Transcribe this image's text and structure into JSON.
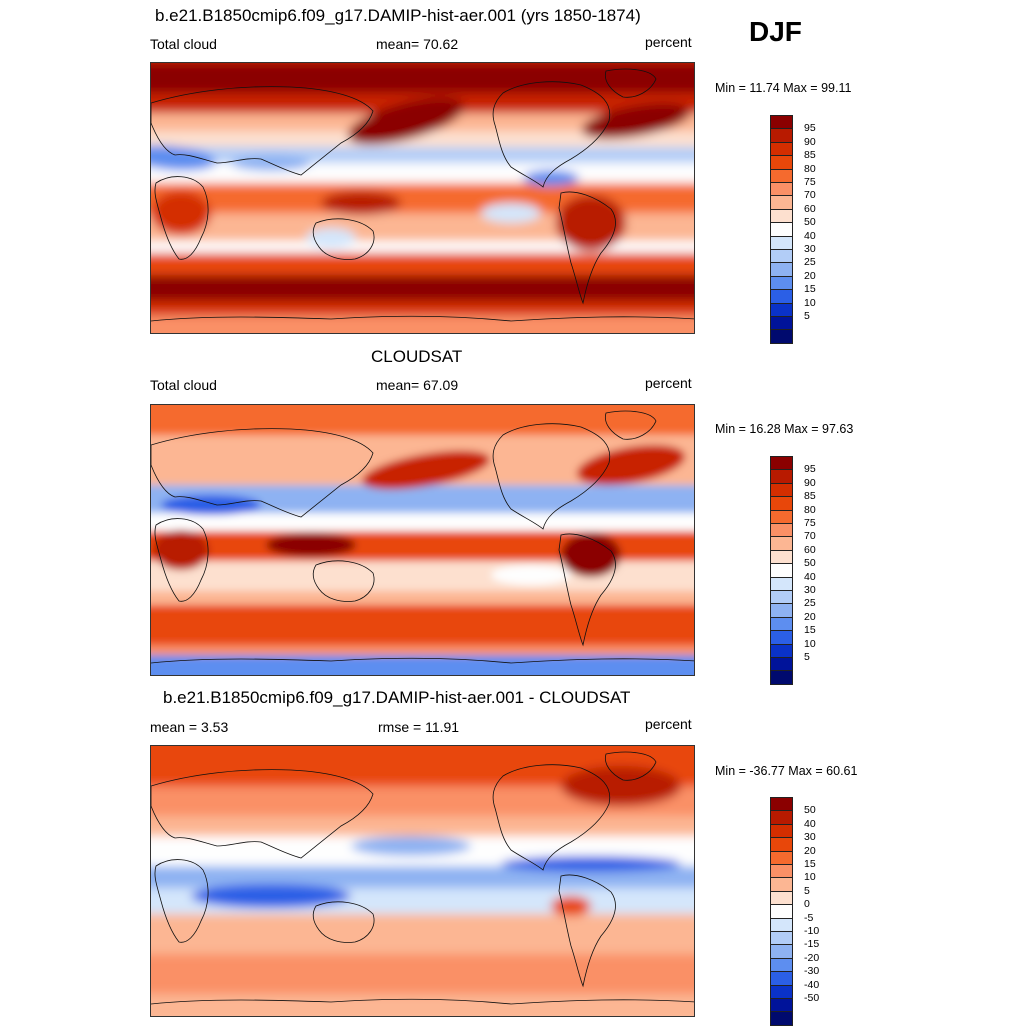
{
  "season": "DJF",
  "units_label": "percent",
  "panels": [
    {
      "title": "b.e21.B1850cmip6.f09_g17.DAMIP-hist-aer.001 (yrs 1850-1874)",
      "left_label": "Total cloud",
      "center_label": "mean=  70.62",
      "right_label": "percent",
      "minmax": "Min =  11.74 Max =  99.11",
      "colorbar": {
        "levels": [
          "95",
          "90",
          "85",
          "80",
          "75",
          "70",
          "60",
          "50",
          "40",
          "30",
          "25",
          "20",
          "15",
          "10",
          "5"
        ],
        "colors": [
          "#8b0000",
          "#b81a00",
          "#d42e00",
          "#e8470a",
          "#f56a2e",
          "#fa9066",
          "#fcb693",
          "#fde0cf",
          "#fefefe",
          "#d4e6fb",
          "#b2cdf7",
          "#8eb2f2",
          "#5d8ef0",
          "#2b5fe6",
          "#0a32c8",
          "#00139a",
          "#000a6e"
        ]
      },
      "map_kind": "model"
    },
    {
      "title": "CLOUDSAT",
      "left_label": "Total cloud",
      "center_label": "mean=  67.09",
      "right_label": "percent",
      "minmax": "Min =  16.28 Max =  97.63",
      "colorbar": {
        "levels": [
          "95",
          "90",
          "85",
          "80",
          "75",
          "70",
          "60",
          "50",
          "40",
          "30",
          "25",
          "20",
          "15",
          "10",
          "5"
        ],
        "colors": [
          "#8b0000",
          "#b81a00",
          "#d42e00",
          "#e8470a",
          "#f56a2e",
          "#fa9066",
          "#fcb693",
          "#fde0cf",
          "#fefefe",
          "#d4e6fb",
          "#b2cdf7",
          "#8eb2f2",
          "#5d8ef0",
          "#2b5fe6",
          "#0a32c8",
          "#00139a",
          "#000a6e"
        ]
      },
      "map_kind": "obs"
    },
    {
      "title": "b.e21.B1850cmip6.f09_g17.DAMIP-hist-aer.001 - CLOUDSAT",
      "left_label": "mean =   3.53",
      "center_label": "rmse =  11.91",
      "right_label": "percent",
      "minmax": "Min = -36.77 Max =  60.61",
      "colorbar": {
        "levels": [
          "50",
          "40",
          "30",
          "20",
          "15",
          "10",
          "5",
          "0",
          "-5",
          "-10",
          "-15",
          "-20",
          "-30",
          "-40",
          "-50"
        ],
        "colors": [
          "#8b0000",
          "#b81a00",
          "#d42e00",
          "#e8470a",
          "#f56a2e",
          "#fa9066",
          "#fcb693",
          "#fde0cf",
          "#fefefe",
          "#d4e6fb",
          "#b2cdf7",
          "#8eb2f2",
          "#5d8ef0",
          "#2b5fe6",
          "#0a32c8",
          "#00139a",
          "#000a6e"
        ]
      },
      "map_kind": "diff"
    }
  ]
}
